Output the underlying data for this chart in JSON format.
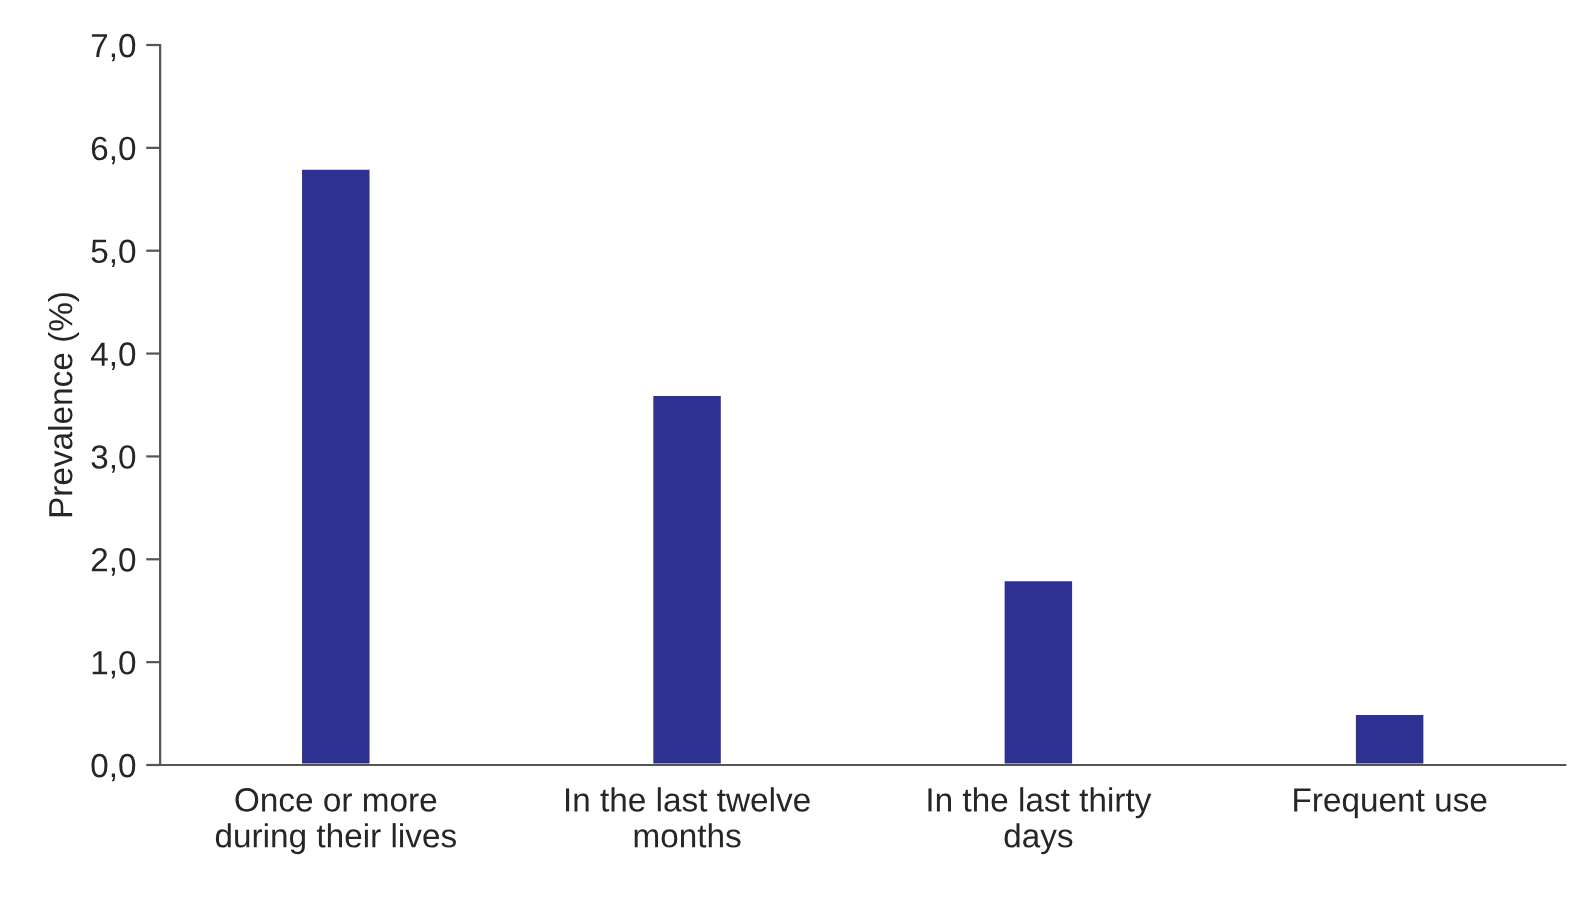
{
  "chart_data": {
    "type": "bar",
    "ylabel": "Prevalence (%)",
    "categories": [
      "Once or more\nduring their lives",
      "In the last twelve\nmonths",
      "In the last thirty\ndays",
      "Frequent use"
    ],
    "values": [
      5.8,
      3.6,
      1.8,
      0.5
    ],
    "color": "#2e3192",
    "ylim": [
      0,
      7
    ],
    "yticks": [
      {
        "value": 0,
        "label": "0,0"
      },
      {
        "value": 1,
        "label": "1,0"
      },
      {
        "value": 2,
        "label": "2,0"
      },
      {
        "value": 3,
        "label": "3,0"
      },
      {
        "value": 4,
        "label": "4,0"
      },
      {
        "value": 5,
        "label": "5,0"
      },
      {
        "value": 6,
        "label": "6,0"
      },
      {
        "value": 7,
        "label": "7,0"
      }
    ],
    "grid": false,
    "legend": false
  }
}
